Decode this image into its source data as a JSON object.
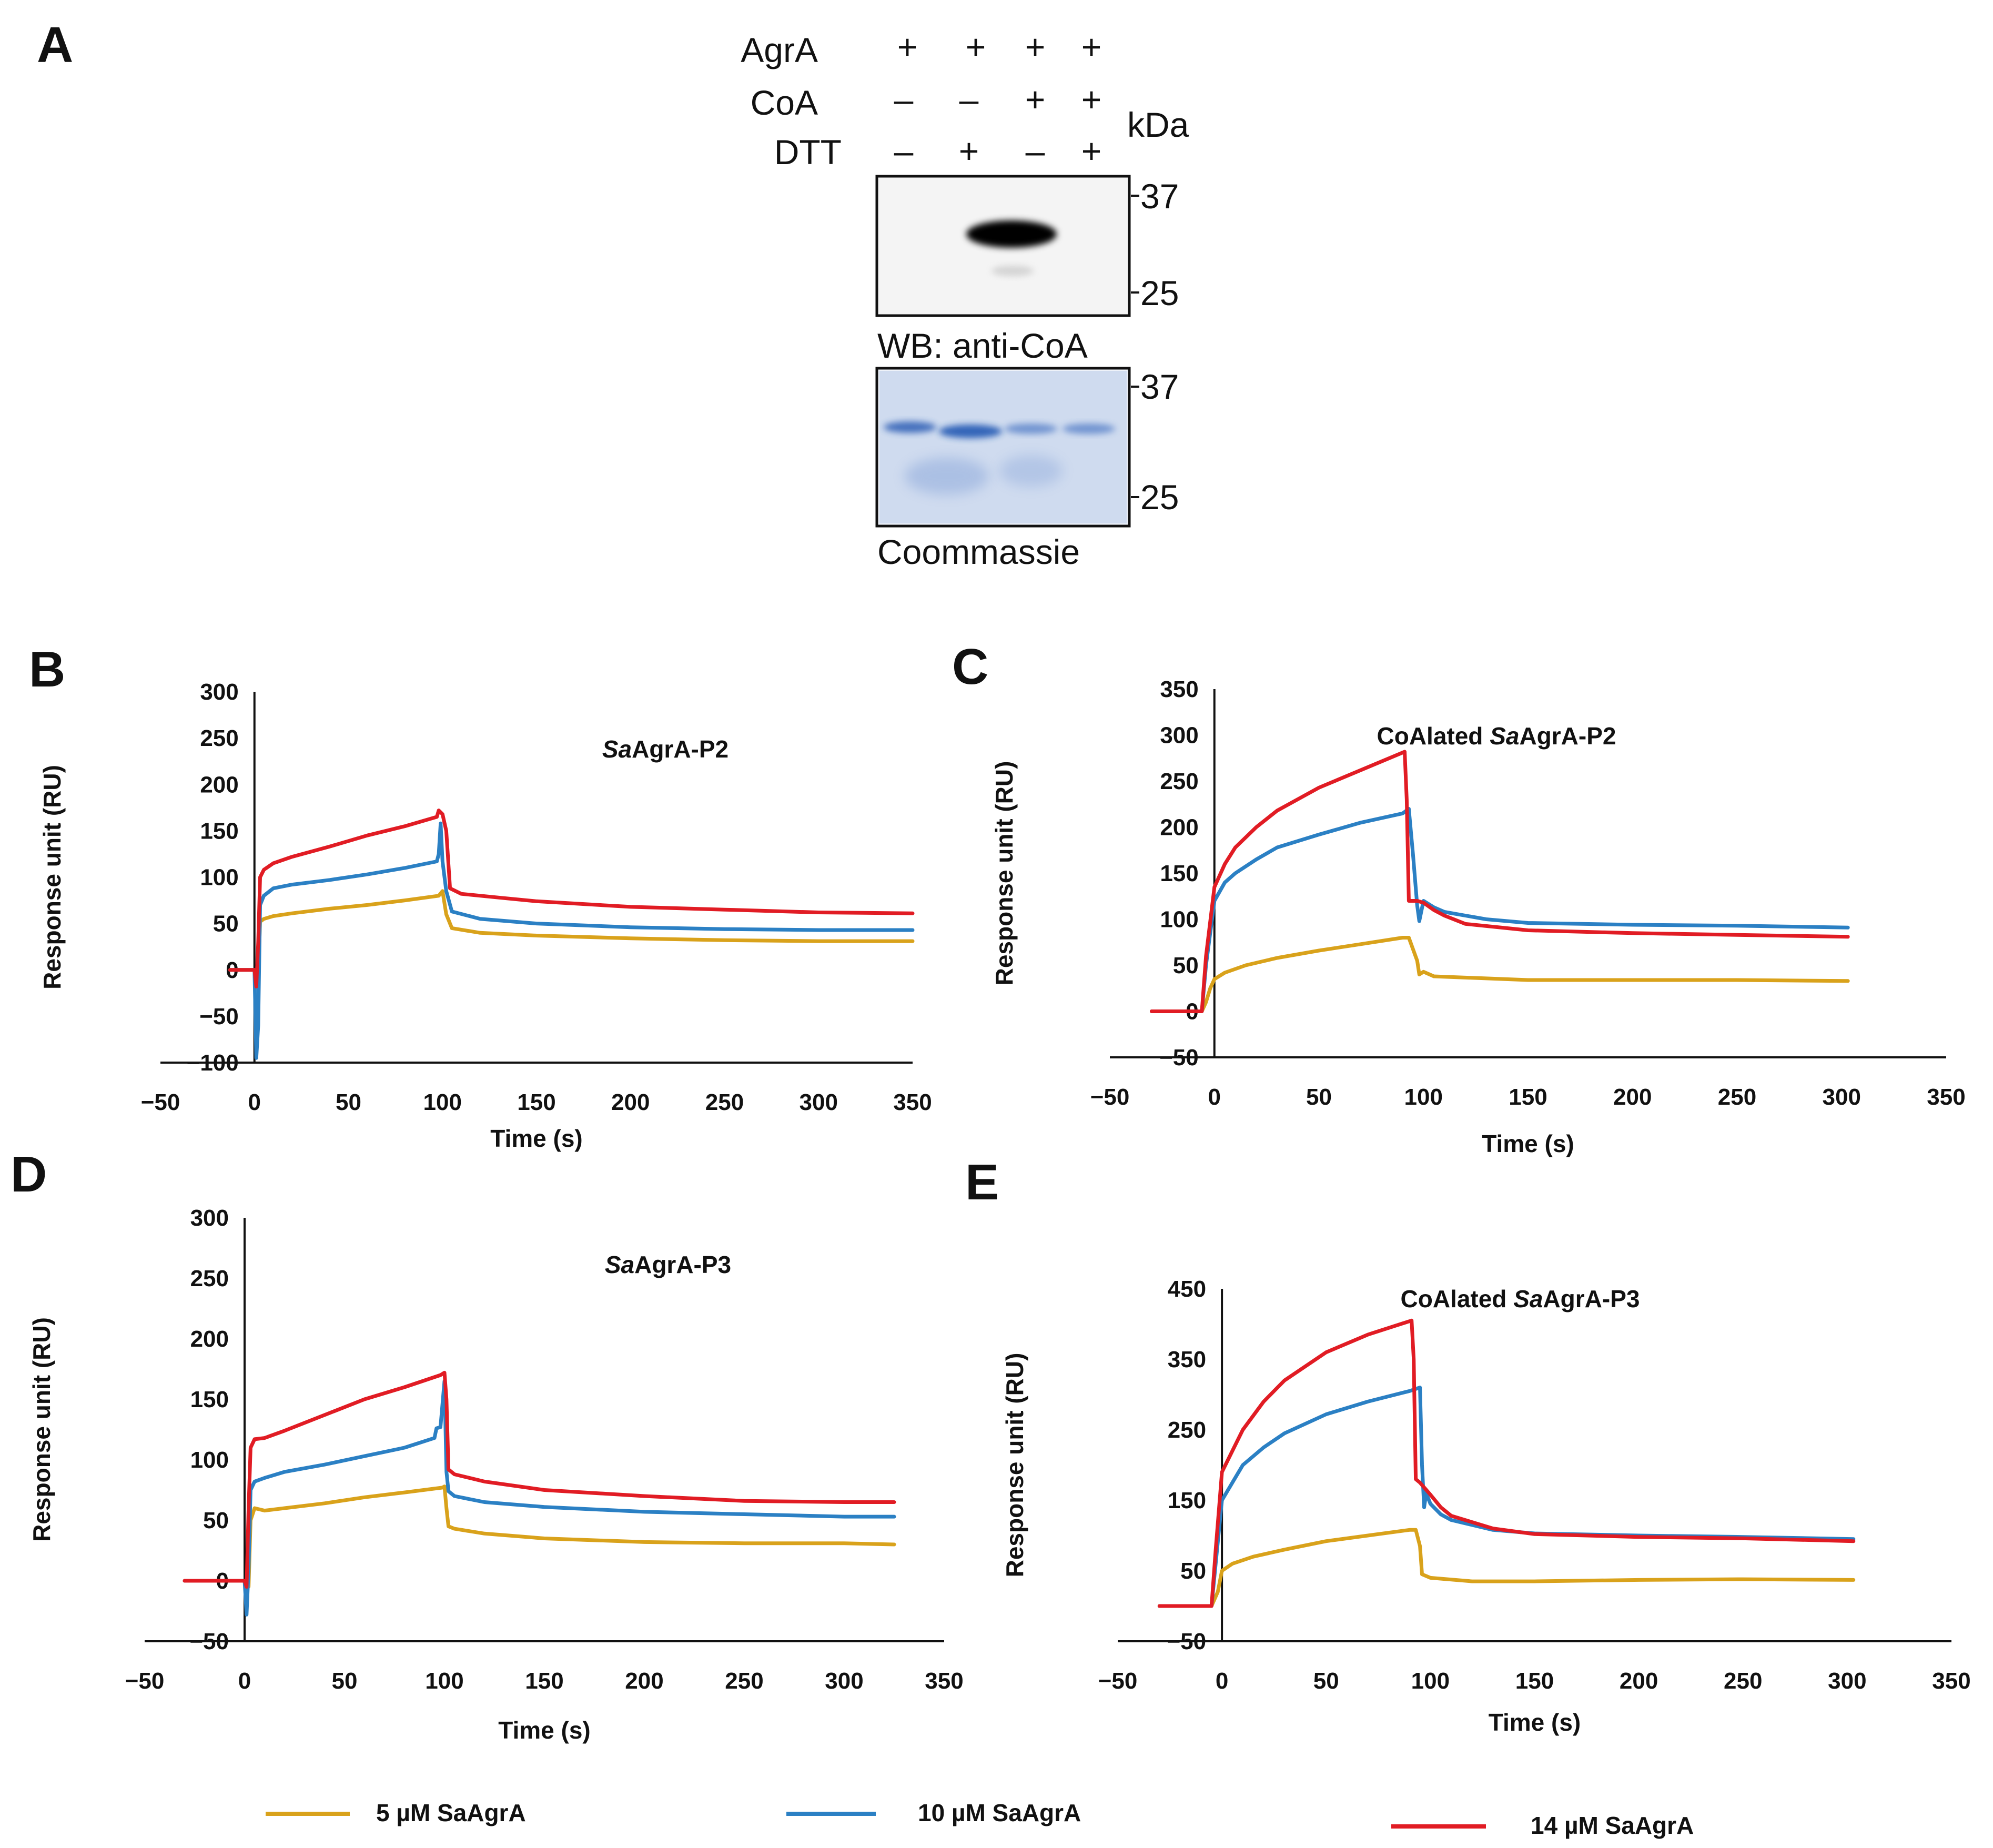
{
  "colors": {
    "s5": "#D9A21B",
    "s10": "#2B80C4",
    "s14": "#E11C24",
    "coomassie": "#4472C4"
  },
  "panelA": {
    "letter": "A",
    "rows": [
      {
        "label": "AgrA",
        "signs": [
          "+",
          "+",
          "+",
          "+"
        ]
      },
      {
        "label": "CoA",
        "signs": [
          "–",
          "–",
          "+",
          "+"
        ]
      },
      {
        "label": "DTT",
        "signs": [
          "–",
          "+",
          "–",
          "+"
        ]
      }
    ],
    "kda": "kDa",
    "wb": {
      "caption": "WB: anti-CoA",
      "markers": [
        "37",
        "25"
      ],
      "band_lane": 3
    },
    "coomassie": {
      "caption": "Coommassie",
      "markers": [
        "37",
        "25"
      ]
    }
  },
  "legend": {
    "s5": "5 µM SaAgrA",
    "s10": "10 µM SaAgrA",
    "s14": "14 µM SaAgrA"
  },
  "chart_data": [
    {
      "letter": "B",
      "type": "line",
      "title": "SaAgrA-P2",
      "xlabel": "Time (s)",
      "ylabel": "Response unit (RU)",
      "xlim": [
        -50,
        350
      ],
      "ylim": [
        -100,
        300
      ],
      "xticks": [
        -50,
        0,
        50,
        100,
        150,
        200,
        250,
        300,
        350
      ],
      "yticks": [
        -100,
        -50,
        0,
        50,
        100,
        150,
        200,
        250,
        300
      ],
      "series": [
        {
          "name": "5 µM SaAgrA",
          "color": "#D9A21B",
          "x": [
            -13,
            0,
            2,
            3,
            5,
            10,
            20,
            40,
            60,
            80,
            98,
            100,
            102,
            105,
            120,
            150,
            200,
            250,
            300,
            350
          ],
          "y": [
            0,
            0,
            -5,
            52,
            55,
            58,
            61,
            66,
            70,
            75,
            80,
            85,
            60,
            45,
            40,
            37,
            34,
            32,
            31,
            31
          ]
        },
        {
          "name": "10 µM SaAgrA",
          "color": "#2B80C4",
          "x": [
            -13,
            0,
            1,
            2,
            3,
            5,
            10,
            20,
            40,
            60,
            80,
            97,
            98,
            99,
            100,
            102,
            105,
            120,
            150,
            200,
            250,
            300,
            350
          ],
          "y": [
            0,
            0,
            -95,
            -60,
            70,
            80,
            88,
            92,
            97,
            103,
            110,
            117,
            125,
            158,
            117,
            85,
            63,
            55,
            50,
            46,
            44,
            43,
            43
          ]
        },
        {
          "name": "14 µM SaAgrA",
          "color": "#E11C24",
          "x": [
            -13,
            0,
            1,
            2,
            3,
            5,
            10,
            20,
            40,
            60,
            80,
            97,
            98,
            100,
            102,
            104,
            110,
            130,
            150,
            200,
            250,
            300,
            350
          ],
          "y": [
            0,
            0,
            -18,
            30,
            100,
            108,
            115,
            122,
            133,
            145,
            155,
            165,
            172,
            168,
            150,
            88,
            82,
            78,
            74,
            68,
            65,
            62,
            61
          ]
        }
      ]
    },
    {
      "letter": "C",
      "type": "line",
      "title": "CoAlated SaAgrA-P2",
      "xlabel": "Time (s)",
      "ylabel": "Response unit (RU)",
      "xlim": [
        -50,
        350
      ],
      "ylim": [
        -50,
        350
      ],
      "xticks": [
        -50,
        0,
        50,
        100,
        150,
        200,
        250,
        300,
        350
      ],
      "yticks": [
        -50,
        0,
        50,
        100,
        150,
        200,
        250,
        300,
        350
      ],
      "series": [
        {
          "name": "5 µM SaAgrA",
          "color": "#D9A21B",
          "x": [
            -30,
            -6,
            -4,
            -2,
            0,
            5,
            15,
            30,
            50,
            70,
            90,
            93,
            97,
            98,
            100,
            105,
            150,
            200,
            250,
            303
          ],
          "y": [
            0,
            0,
            10,
            25,
            35,
            42,
            50,
            58,
            66,
            73,
            80,
            80,
            55,
            40,
            43,
            38,
            34,
            34,
            34,
            33
          ]
        },
        {
          "name": "10 µM SaAgrA",
          "color": "#2B80C4",
          "x": [
            -30,
            -6,
            -4,
            0,
            5,
            10,
            20,
            30,
            50,
            70,
            90,
            93,
            95,
            97,
            98,
            100,
            105,
            110,
            130,
            150,
            200,
            250,
            303
          ],
          "y": [
            0,
            0,
            50,
            120,
            140,
            150,
            165,
            178,
            192,
            205,
            215,
            220,
            170,
            115,
            98,
            120,
            113,
            108,
            100,
            96,
            94,
            93,
            91
          ]
        },
        {
          "name": "14 µM SaAgrA",
          "color": "#E11C24",
          "x": [
            -30,
            -6,
            -4,
            0,
            5,
            10,
            20,
            30,
            50,
            70,
            91,
            92,
            93,
            97,
            100,
            105,
            110,
            120,
            150,
            200,
            250,
            303
          ],
          "y": [
            0,
            0,
            60,
            135,
            160,
            178,
            200,
            218,
            243,
            262,
            282,
            230,
            120,
            120,
            118,
            110,
            104,
            95,
            88,
            85,
            83,
            81
          ]
        }
      ]
    },
    {
      "letter": "D",
      "type": "line",
      "title": "SaAgrA-P3",
      "xlabel": "Time (s)",
      "ylabel": "Response unit (RU)",
      "xlim": [
        -50,
        350
      ],
      "ylim": [
        -50,
        300
      ],
      "xticks": [
        -50,
        0,
        50,
        100,
        150,
        200,
        250,
        300,
        350
      ],
      "yticks": [
        -50,
        0,
        50,
        100,
        150,
        200,
        250,
        300
      ],
      "series": [
        {
          "name": "5 µM SaAgrA",
          "color": "#D9A21B",
          "x": [
            -30,
            0,
            2,
            3,
            5,
            10,
            20,
            40,
            60,
            80,
            99,
            100,
            101,
            102,
            105,
            120,
            150,
            200,
            250,
            300,
            325
          ],
          "y": [
            0,
            0,
            -5,
            50,
            60,
            58,
            60,
            64,
            69,
            73,
            77,
            78,
            60,
            45,
            43,
            39,
            35,
            32,
            31,
            31,
            30
          ]
        },
        {
          "name": "10 µM SaAgrA",
          "color": "#2B80C4",
          "x": [
            -30,
            0,
            1,
            2,
            3,
            5,
            10,
            20,
            40,
            60,
            80,
            95,
            96,
            98,
            100,
            101,
            102,
            105,
            120,
            150,
            200,
            250,
            300,
            325
          ],
          "y": [
            0,
            0,
            -28,
            10,
            75,
            82,
            85,
            90,
            96,
            103,
            110,
            118,
            126,
            127,
            165,
            90,
            74,
            70,
            65,
            61,
            57,
            55,
            53,
            53
          ]
        },
        {
          "name": "14 µM SaAgrA",
          "color": "#E11C24",
          "x": [
            -30,
            0,
            1,
            2,
            3,
            5,
            10,
            20,
            40,
            60,
            80,
            98,
            100,
            101,
            102,
            105,
            120,
            150,
            200,
            250,
            300,
            325
          ],
          "y": [
            0,
            0,
            -5,
            60,
            110,
            117,
            118,
            124,
            137,
            150,
            160,
            170,
            172,
            150,
            92,
            88,
            82,
            75,
            70,
            66,
            65,
            65
          ]
        }
      ]
    },
    {
      "letter": "E",
      "type": "line",
      "title": "CoAlated SaAgrA-P3",
      "xlabel": "Time (s)",
      "ylabel": "Response unit (RU)",
      "xlim": [
        -50,
        350
      ],
      "ylim": [
        -50,
        450
      ],
      "xticks": [
        -50,
        0,
        50,
        100,
        150,
        200,
        250,
        300,
        350
      ],
      "yticks": [
        -50,
        50,
        150,
        250,
        350,
        450
      ],
      "series": [
        {
          "name": "5 µM SaAgrA",
          "color": "#D9A21B",
          "x": [
            -30,
            -5,
            -2,
            0,
            5,
            15,
            30,
            50,
            70,
            90,
            93,
            95,
            96,
            100,
            120,
            150,
            200,
            250,
            303
          ],
          "y": [
            0,
            0,
            20,
            50,
            60,
            70,
            80,
            92,
            100,
            108,
            108,
            85,
            45,
            40,
            35,
            35,
            37,
            38,
            37
          ]
        },
        {
          "name": "10 µM SaAgrA",
          "color": "#2B80C4",
          "x": [
            -30,
            -5,
            -3,
            0,
            5,
            10,
            20,
            30,
            50,
            70,
            90,
            95,
            96,
            97,
            98,
            100,
            105,
            110,
            130,
            150,
            200,
            250,
            303
          ],
          "y": [
            0,
            0,
            60,
            150,
            175,
            200,
            225,
            245,
            272,
            290,
            305,
            310,
            200,
            140,
            160,
            145,
            130,
            122,
            108,
            103,
            100,
            98,
            95
          ]
        },
        {
          "name": "14 µM SaAgrA",
          "color": "#E11C24",
          "x": [
            -30,
            -5,
            -3,
            0,
            5,
            10,
            20,
            30,
            50,
            70,
            91,
            92,
            93,
            95,
            100,
            105,
            110,
            130,
            150,
            200,
            250,
            303
          ],
          "y": [
            0,
            0,
            80,
            190,
            220,
            250,
            290,
            320,
            360,
            385,
            405,
            350,
            180,
            175,
            158,
            140,
            128,
            110,
            102,
            98,
            96,
            92
          ]
        }
      ]
    }
  ]
}
